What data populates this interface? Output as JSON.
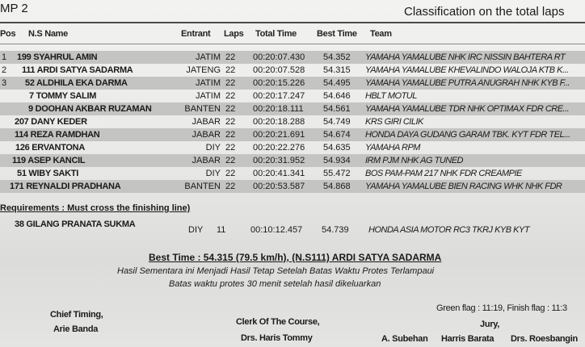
{
  "header": {
    "event": "MP 2",
    "title": "Classification on the total laps"
  },
  "columns": {
    "pos": "Pos",
    "name": "N.S Name",
    "entrant": "Entrant",
    "laps": "Laps",
    "total_time": "Total Time",
    "best_time": "Best Time",
    "team": "Team"
  },
  "rows": [
    {
      "pos": "1",
      "name": "199 SYAHRUL AMIN",
      "entrant": "JATIM",
      "laps": "22",
      "total": "00:20:07.430",
      "best": "54.352",
      "team": "YAMAHA YAMALUBE NHK IRC NISSIN BAHTERA RT"
    },
    {
      "pos": "2",
      "name": "111 ARDI SATYA SADARMA",
      "entrant": "JATENG",
      "laps": "22",
      "total": "00:20:07.528",
      "best": "54.315",
      "team": "YAMAHA YAMALUBE KHEVALINDO WALOJA KTB K..."
    },
    {
      "pos": "3",
      "name": "52 ALDHILA EKA DARMA",
      "entrant": "JATIM",
      "laps": "22",
      "total": "00:20:15.226",
      "best": "54.495",
      "team": "YAMAHA YAMALUBE PUTRA ANUGRAH NHK KYB F..."
    },
    {
      "pos": "",
      "name": "7 TOMMY SALIM",
      "entrant": "JATIM",
      "laps": "22",
      "total": "00:20:17.247",
      "best": "54.646",
      "team": "HBLT MOTUL"
    },
    {
      "pos": "",
      "name": "9 DOOHAN AKBAR RUZAMAN",
      "entrant": "BANTEN",
      "laps": "22",
      "total": "00:20:18.111",
      "best": "54.561",
      "team": "YAMAHA YAMALUBE TDR NHK OPTIMAX FDR CRE..."
    },
    {
      "pos": "",
      "name": "207 DANY KEDER",
      "entrant": "JABAR",
      "laps": "22",
      "total": "00:20:18.288",
      "best": "54.749",
      "team": "KRS GIRI CILIK"
    },
    {
      "pos": "",
      "name": "114 REZA RAMDHAN",
      "entrant": "JABAR",
      "laps": "22",
      "total": "00:20:21.691",
      "best": "54.674",
      "team": "HONDA DAYA GUDANG GARAM TBK. KYT FDR TEL..."
    },
    {
      "pos": "",
      "name": "126 ERVANTONA",
      "entrant": "DIY",
      "laps": "22",
      "total": "00:20:22.276",
      "best": "54.635",
      "team": "YAMAHA RPM"
    },
    {
      "pos": "",
      "name": "119 ASEP KANCIL",
      "entrant": "JABAR",
      "laps": "22",
      "total": "00:20:31.952",
      "best": "54.934",
      "team": "IRM PJM NHK AG TUNED"
    },
    {
      "pos": "",
      "name": "51 WIBY SAKTI",
      "entrant": "DIY",
      "laps": "22",
      "total": "00:20:41.341",
      "best": "55.472",
      "team": "BOS PAM-PAM 217 NHK FDR CREAMPIE"
    },
    {
      "pos": "",
      "name": "171 REYNALDI PRADHANA",
      "entrant": "BANTEN",
      "laps": "22",
      "total": "00:20:53.587",
      "best": "54.868",
      "team": "YAMAHA YAMALUBE BIEN RACING WHK NHK FDR"
    }
  ],
  "requirements": {
    "label": "Requirements : Must cross the finishing line)",
    "row": {
      "name": "38 GILANG PRANATA SUKMA",
      "entrant": "DIY",
      "laps": "11",
      "total": "00:10:12.457",
      "best": "54.739",
      "team": "HONDA ASIA MOTOR RC3 TKRJ KYB KYT"
    }
  },
  "best_time": "Best Time : 54.315 (79.5 km/h), (N.S111) ARDI SATYA SADARMA",
  "notes": [
    "Hasil Sementara ini Menjadi Hasil Tetap Setelah Batas Waktu Protes Terlampaui",
    "Batas waktu protes 30 menit setelah hasil dikeluarkan"
  ],
  "flags": "Green flag : 11:19, Finish flag : 11:3",
  "signatures": {
    "chief_timing_title": "Chief Timing,",
    "chief_timing_name": "Arie Banda",
    "clerk_title": "Clerk Of The Course,",
    "clerk_name": "Drs. Haris Tommy",
    "jury_title": "Jury,",
    "jury_names": [
      "A. Subehan",
      "Harris Barata",
      "Drs. Roesbangin"
    ]
  }
}
